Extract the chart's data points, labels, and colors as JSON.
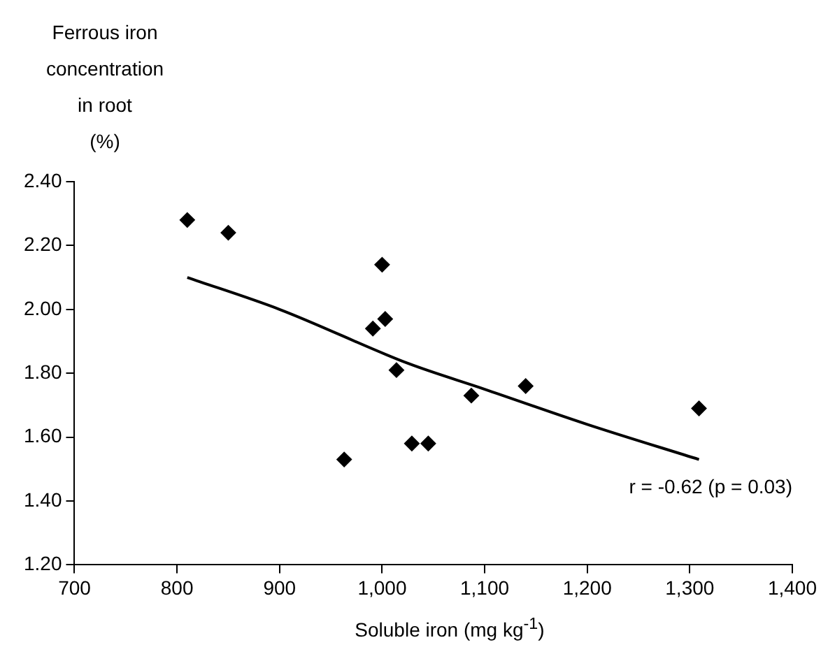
{
  "chart_data": {
    "type": "scatter",
    "xlabel": "Soluble iron (mg kg$^{-1}$)",
    "ylabel": "Ferrous iron\nconcentration\nin root\n(%)",
    "annotations": [
      "r = -0.62 (p = 0.03)"
    ],
    "xlim": [
      700,
      1400
    ],
    "xticks": [
      700,
      800,
      900,
      {
        "value": 1000,
        "label": "1,000"
      },
      {
        "value": 1100,
        "label": "1,100"
      },
      {
        "value": 1200,
        "label": "1,200"
      },
      {
        "value": 1300,
        "label": "1,300"
      },
      {
        "value": 1400,
        "label": "1,400"
      }
    ],
    "ylim": [
      1.2,
      2.4
    ],
    "yticks": [
      {
        "value": 1.2,
        "label": "1.20"
      },
      {
        "value": 1.4,
        "label": "1.40"
      },
      {
        "value": 1.6,
        "label": "1.60"
      },
      {
        "value": 1.8,
        "label": "1.80"
      },
      {
        "value": 2.0,
        "label": "2.00"
      },
      {
        "value": 2.2,
        "label": "2.20"
      },
      {
        "value": 2.4,
        "label": "2.40"
      }
    ],
    "grid": false,
    "legend": false,
    "marker": "diamond",
    "series": [
      {
        "color": "#000000",
        "x": [
          810,
          850,
          1000,
          991,
          1003,
          1014,
          963,
          1029,
          1045,
          1087,
          1140,
          1309
        ],
        "values": [
          2.28,
          2.24,
          2.14,
          1.94,
          1.97,
          1.81,
          1.53,
          1.58,
          1.58,
          1.73,
          1.76,
          1.69
        ]
      },
      {
        "type": "line",
        "color": "#000000",
        "marker": "none",
        "line_style": "solid",
        "x": [
          810,
          900,
          1026,
          1100,
          1200,
          1309
        ],
        "values": [
          2.1,
          2.0,
          1.83,
          1.75,
          1.64,
          1.53
        ]
      }
    ]
  }
}
